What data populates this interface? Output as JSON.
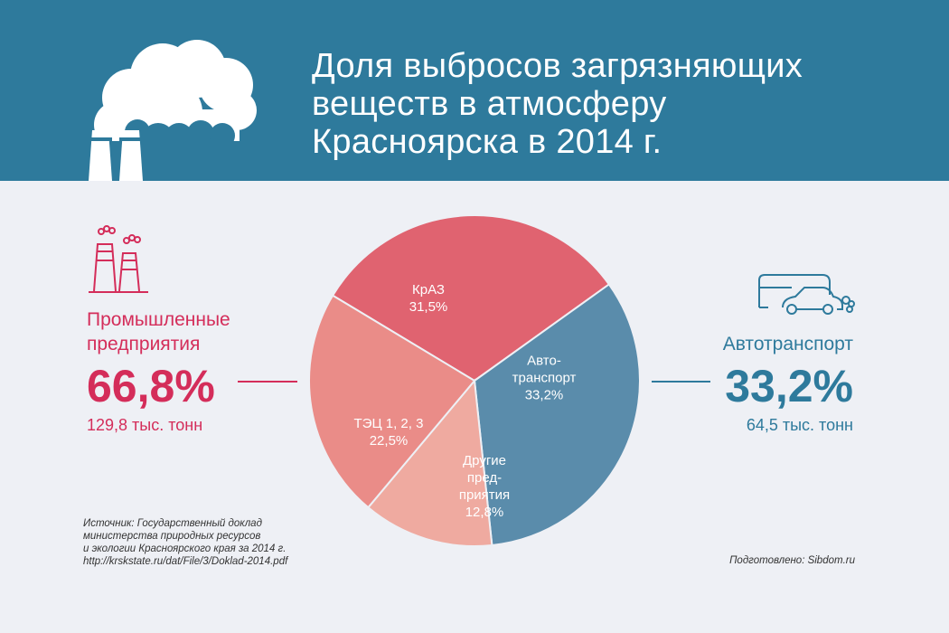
{
  "header": {
    "title_lines": [
      "Доля выбросов загрязняющих",
      "веществ в атмосферу",
      "Красноярска в 2014 г."
    ]
  },
  "chart_data": {
    "type": "pie",
    "slices": [
      {
        "label_lines": [
          "КрАЗ",
          "31,5%"
        ],
        "value": 31.5,
        "color": "#e06370"
      },
      {
        "label_lines": [
          "Авто-",
          "транспорт",
          "33,2%"
        ],
        "value": 33.2,
        "color": "#5a8cab"
      },
      {
        "label_lines": [
          "Другие",
          "пред-",
          "приятия",
          "12,8%"
        ],
        "value": 12.8,
        "color": "#efaaa0"
      },
      {
        "label_lines": [
          "ТЭЦ 1, 2, 3",
          "22,5%"
        ],
        "value": 22.5,
        "color": "#ea8c88"
      }
    ]
  },
  "left": {
    "name_lines": [
      "Промышленные",
      "предприятия"
    ],
    "percent": "66,8%",
    "tons": "129,8 тыс. тонн",
    "color": "#d42d5a"
  },
  "right": {
    "name": "Автотранспорт",
    "percent": "33,2%",
    "tons": "64,5 тыс. тонн",
    "color": "#2e7a9c"
  },
  "source": {
    "lines": [
      "Источник: Государственный доклад",
      "министерства природных ресурсов",
      "и экологии Красноярского края за 2014 г.",
      "http://krskstate.ru/dat/File/3/Doklad-2014.pdf"
    ]
  },
  "credit": "Подготовлено: Sibdom.ru",
  "icons": {
    "header_icon": "factory-smoke-icon",
    "industry_icon": "factory-icon",
    "transport_icon": "bus-car-icon"
  }
}
